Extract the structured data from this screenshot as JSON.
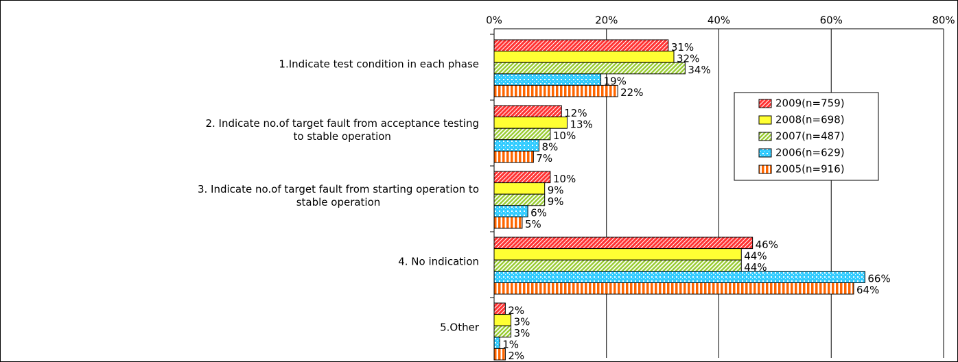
{
  "chart_data": {
    "type": "bar",
    "orientation": "horizontal",
    "categories": [
      "1.Indicate test condition in each phase",
      "2. Indicate no.of target fault  from acceptance testing\nto stable operation",
      "3. Indicate no.of target fault from starting operation to\nstable operation",
      "4. No indication",
      "5.Other"
    ],
    "series": [
      {
        "name": "2009(n=759)",
        "color": "#ff3333",
        "values": [
          31,
          12,
          10,
          46,
          2
        ],
        "value_labels": [
          "31%",
          "12%",
          "10%",
          "46%",
          "2%"
        ]
      },
      {
        "name": "2008(n=698)",
        "color": "#ffff33",
        "values": [
          32,
          13,
          9,
          44,
          3
        ],
        "value_labels": [
          "32%",
          "13%",
          "9%",
          "44%",
          "3%"
        ]
      },
      {
        "name": "2007(n=487)",
        "color": "#99cc33",
        "values": [
          34,
          10,
          9,
          44,
          3
        ],
        "value_labels": [
          "34%",
          "10%",
          "9%",
          "44%",
          "3%"
        ]
      },
      {
        "name": "2006(n=629)",
        "color": "#33ccff",
        "values": [
          19,
          8,
          6,
          66,
          1
        ],
        "value_labels": [
          "19%",
          "8%",
          "6%",
          "66%",
          "1%"
        ]
      },
      {
        "name": "2005(n=916)",
        "color": "#ff6600",
        "values": [
          22,
          7,
          5,
          64,
          2
        ],
        "value_labels": [
          "22%",
          "7%",
          "5%",
          "64%",
          "2%"
        ]
      }
    ],
    "xlim": [
      0,
      80
    ],
    "xticks": [
      {
        "value": 0,
        "label": "0%"
      },
      {
        "value": 20,
        "label": "20%"
      },
      {
        "value": 40,
        "label": "40%"
      },
      {
        "value": 60,
        "label": "60%"
      },
      {
        "value": 80,
        "label": "80%"
      }
    ],
    "grid": true,
    "legend": "right"
  }
}
